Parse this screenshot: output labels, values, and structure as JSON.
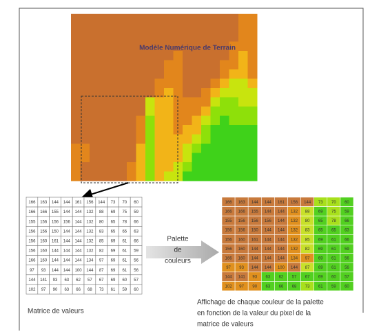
{
  "map_title": "Modèle Numérique de Terrain",
  "matrix_caption": "Matrice de valeurs",
  "palette_label": [
    "Palette",
    "de",
    "couleurs"
  ],
  "result_caption": [
    "Affichage de chaque couleur de la palette",
    "en fonction de la valeur du pixel de la",
    " matrice de valeurs"
  ],
  "matrix": [
    [
      166,
      163,
      144,
      144,
      161,
      156,
      144,
      73,
      70,
      60
    ],
    [
      166,
      166,
      155,
      144,
      144,
      132,
      88,
      69,
      75,
      59
    ],
    [
      155,
      156,
      156,
      156,
      144,
      132,
      80,
      65,
      78,
      66
    ],
    [
      156,
      156,
      150,
      144,
      144,
      132,
      83,
      65,
      65,
      63
    ],
    [
      156,
      160,
      161,
      144,
      144,
      132,
      85,
      69,
      61,
      66
    ],
    [
      156,
      160,
      144,
      144,
      144,
      132,
      82,
      69,
      61,
      59
    ],
    [
      166,
      160,
      144,
      144,
      144,
      134,
      97,
      69,
      61,
      56
    ],
    [
      97,
      93,
      144,
      144,
      100,
      144,
      87,
      69,
      61,
      56
    ],
    [
      144,
      141,
      93,
      63,
      62,
      57,
      67,
      69,
      60,
      57
    ],
    [
      102,
      97,
      90,
      63,
      66,
      68,
      73,
      61,
      59,
      60
    ]
  ]
}
